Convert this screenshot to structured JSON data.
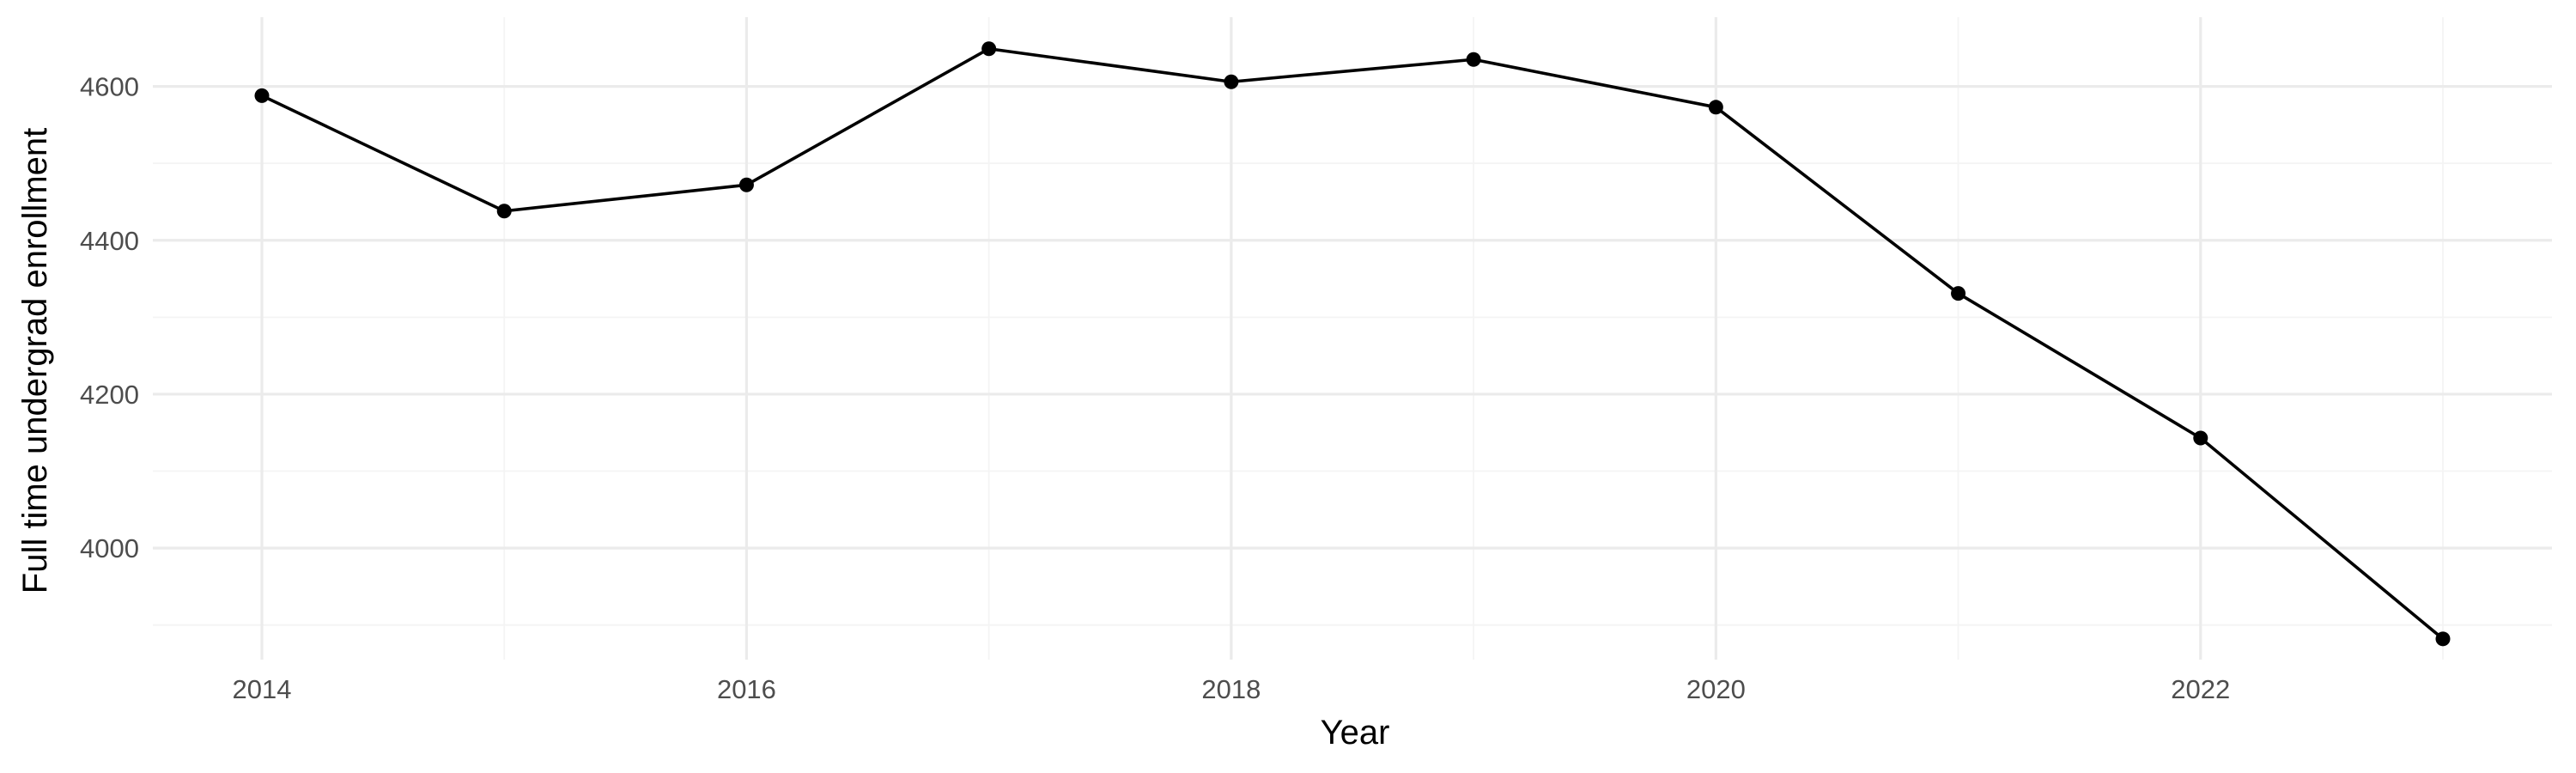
{
  "chart_data": {
    "type": "line",
    "title": "",
    "xlabel": "Year",
    "ylabel": "Full time undergrad enrollment",
    "x": [
      2014,
      2015,
      2016,
      2017,
      2018,
      2019,
      2020,
      2021,
      2022,
      2023
    ],
    "series": [
      {
        "values": [
          4588,
          4438,
          4472,
          4649,
          4606,
          4635,
          4573,
          4331,
          4143,
          3882
        ]
      }
    ],
    "xlim": [
      2013.55,
      2023.45
    ],
    "ylim": [
      3855,
      4690
    ],
    "x_ticks": [
      2014,
      2016,
      2018,
      2020,
      2022
    ],
    "x_tick_labels": [
      "2014",
      "2016",
      "2018",
      "2020",
      "2022"
    ],
    "x_minor_ticks": [
      2015,
      2017,
      2019,
      2021,
      2023
    ],
    "y_ticks": [
      4000,
      4200,
      4400,
      4600
    ],
    "y_tick_labels": [
      "4000",
      "4200",
      "4400",
      "4600"
    ],
    "y_minor_ticks": [
      3900,
      4100,
      4300,
      4500
    ],
    "grid": true,
    "legend": "none",
    "colors": {
      "line": "#000000",
      "points": "#000000",
      "grid_major": "#ebebeb",
      "grid_minor": "#f4f4f4",
      "tick_label": "#4d4d4d",
      "background": "#ffffff"
    }
  }
}
